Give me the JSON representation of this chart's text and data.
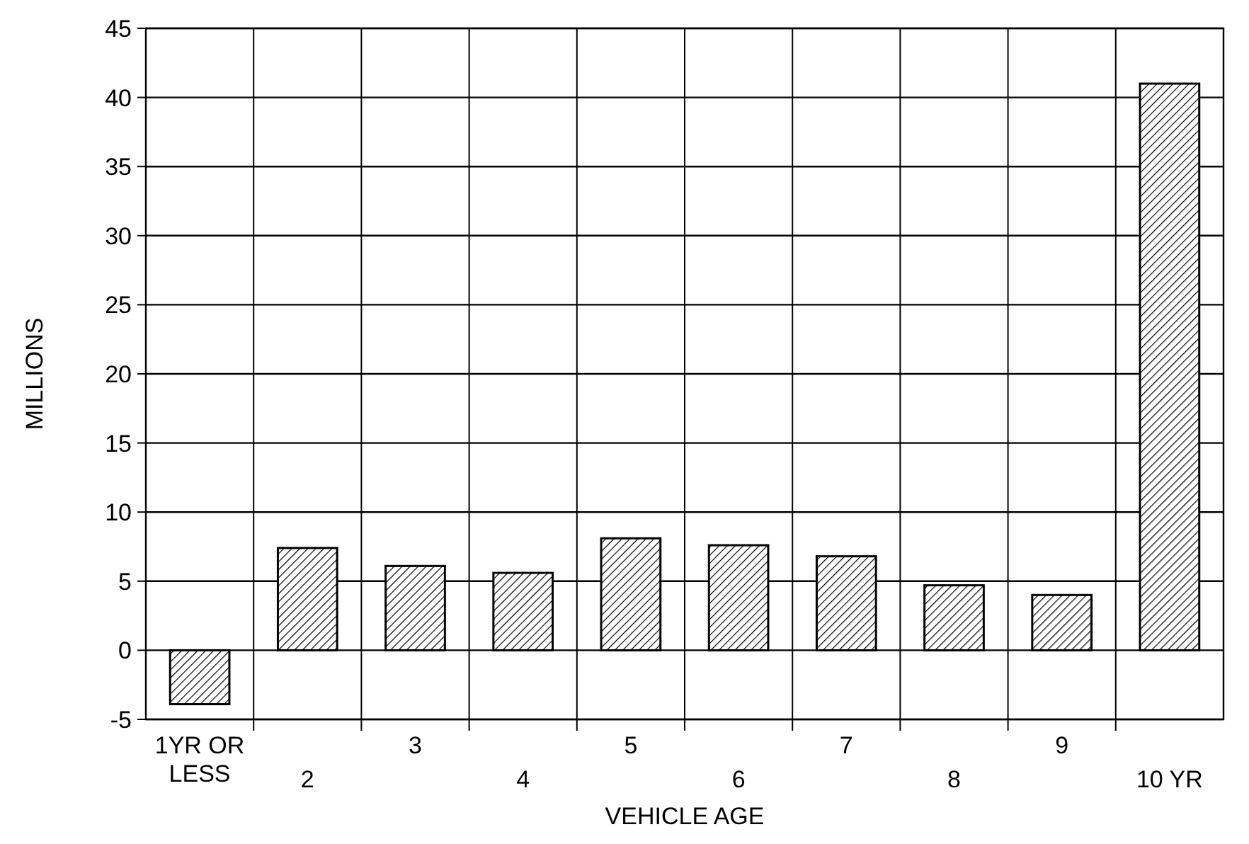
{
  "chart_data": {
    "type": "bar",
    "xlabel": "VEHICLE AGE",
    "ylabel": "MILLIONS",
    "categories": [
      "1YR OR LESS",
      "2",
      "3",
      "4",
      "5",
      "6",
      "7",
      "8",
      "9",
      "10 YR"
    ],
    "values": [
      -3.9,
      7.4,
      6.1,
      5.6,
      8.1,
      7.6,
      6.8,
      4.7,
      4.0,
      41
    ],
    "color": "#000000",
    "ylim": [
      -5,
      45
    ],
    "yticks": [
      -5,
      0,
      5,
      10,
      15,
      20,
      25,
      30,
      35,
      40,
      45
    ],
    "grid": true
  }
}
